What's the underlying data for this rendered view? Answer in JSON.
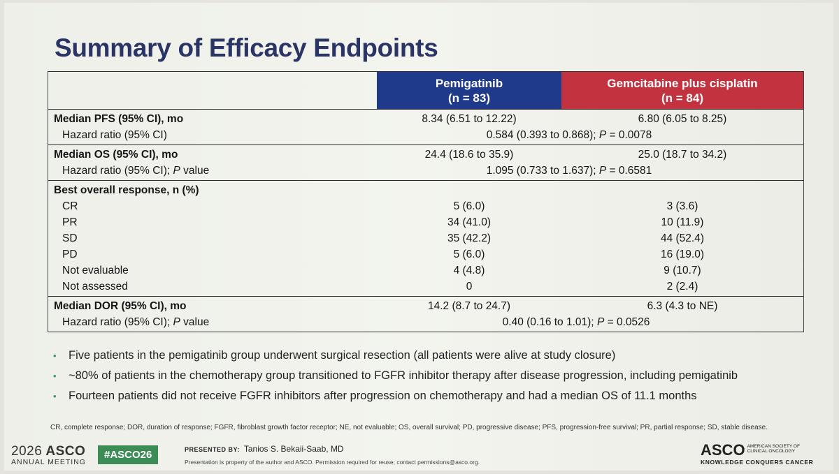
{
  "title": "Summary of Efficacy Endpoints",
  "colors": {
    "pemigatinib_header": "#1f3a8a",
    "gemcitabine_header": "#c2323f",
    "title": "#2b3565",
    "hashtag_bg": "#3e8c55"
  },
  "table": {
    "columns": [
      {
        "name": "Pemigatinib",
        "n": "(n = 83)"
      },
      {
        "name": "Gemcitabine plus cisplatin",
        "n": "(n = 84)"
      }
    ],
    "pfs": {
      "label": "Median PFS (95% CI), mo",
      "a": "8.34 (6.51 to 12.22)",
      "b": "6.80 (6.05 to 8.25)",
      "hr_label": "Hazard ratio (95% CI)",
      "hr_value": "0.584 (0.393 to 0.868); ",
      "p_italic": "P",
      "p_value": " = 0.0078"
    },
    "os": {
      "label": "Median OS (95% CI), mo",
      "a": "24.4 (18.6 to 35.9)",
      "b": "25.0 (18.7 to 34.2)",
      "hr_label": "Hazard ratio (95% CI); ",
      "hr_label_italic": "P",
      "hr_label_tail": " value",
      "hr_value": "1.095 (0.733 to 1.637); ",
      "p_italic": "P",
      "p_value": " = 0.6581"
    },
    "bor": {
      "label": "Best overall response, n (%)",
      "rows": [
        {
          "label": "CR",
          "a": "5 (6.0)",
          "b": "3 (3.6)"
        },
        {
          "label": "PR",
          "a": "34 (41.0)",
          "b": "10 (11.9)"
        },
        {
          "label": "SD",
          "a": "35 (42.2)",
          "b": "44 (52.4)"
        },
        {
          "label": "PD",
          "a": "5 (6.0)",
          "b": "16 (19.0)"
        },
        {
          "label": "Not evaluable",
          "a": "4 (4.8)",
          "b": "9 (10.7)"
        },
        {
          "label": "Not assessed",
          "a": "0",
          "b": "2 (2.4)"
        }
      ]
    },
    "dor": {
      "label": "Median DOR (95% CI), mo",
      "a": "14.2 (8.7 to 24.7)",
      "b": "6.3 (4.3 to NE)",
      "hr_label": "Hazard ratio (95% CI); ",
      "hr_label_italic": "P",
      "hr_label_tail": " value",
      "hr_value": "0.40 (0.16 to 1.01); ",
      "p_italic": "P",
      "p_value": " = 0.0526"
    }
  },
  "bullets": [
    "Five patients in the pemigatinib group underwent surgical resection (all patients were alive at study closure)",
    "~80% of patients in the chemotherapy group transitioned to FGFR inhibitor therapy after disease progression, including pemigatinib",
    "Fourteen patients did not receive FGFR inhibitors after progression on chemotherapy and had a median OS of 11.1 months"
  ],
  "bullet_symbol": "•",
  "footnote": "CR, complete response; DOR, duration of response; FGFR, fibroblast growth factor receptor; NE, not evaluable; OS, overall survival; PD, progressive disease; PFS, progression-free survival; PR, partial response; SD, stable disease.",
  "footer": {
    "year": "2026",
    "asco": "ASCO",
    "meeting": "ANNUAL MEETING",
    "hashtag": "#ASCO26",
    "presented_by_label": "PRESENTED BY:",
    "presenter": "Tanios S. Bekaii-Saab, MD",
    "notice": "Presentation is property of the author and ASCO. Permission required for reuse; contact permissions@asco.org.",
    "logo": "ASCO",
    "logo_sub1": "AMERICAN SOCIETY OF",
    "logo_sub2": "CLINICAL ONCOLOGY",
    "tagline": "KNOWLEDGE CONQUERS CANCER"
  }
}
